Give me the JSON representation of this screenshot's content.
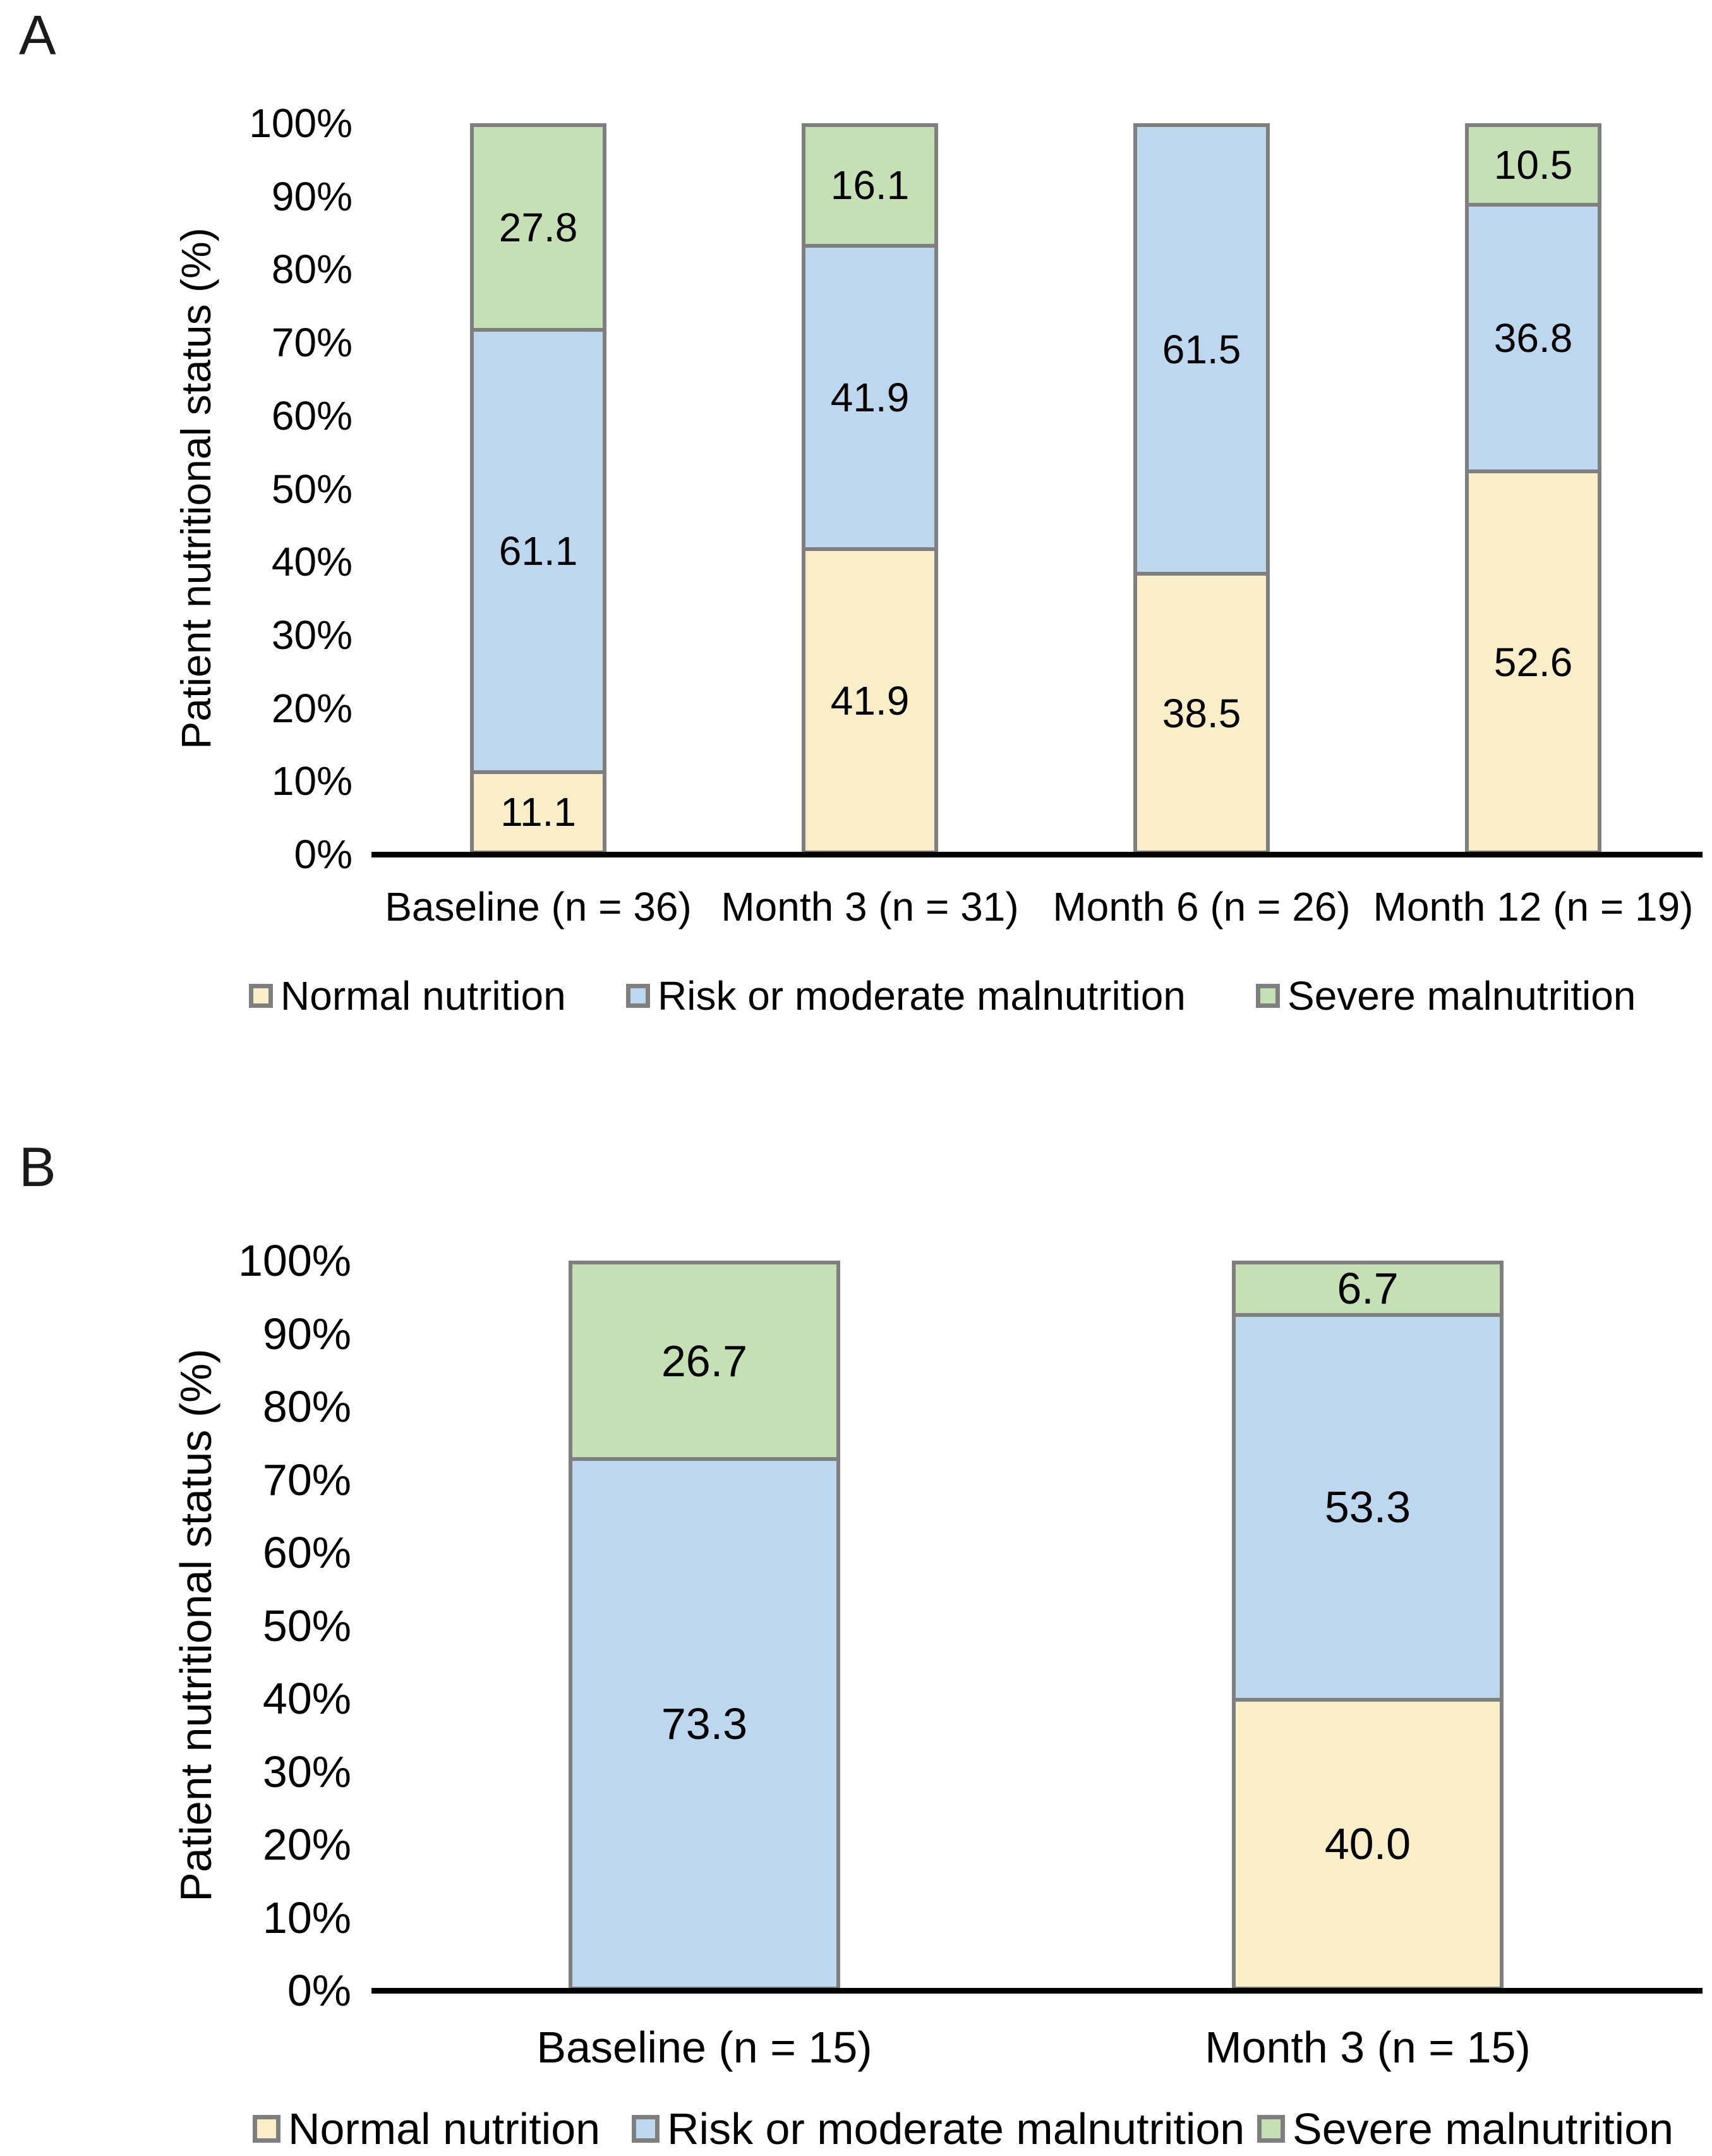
{
  "figure_background": "#ffffff",
  "colors": {
    "normal_nutrition": "#FAEEC8",
    "risk_or_moderate_malnutrition": "#BDD7EE",
    "severe_malnutrition": "#C5E0B4",
    "segment_border": "#7f7f7f",
    "axis_line": "#000000",
    "text": "#000000"
  },
  "chart_data": [
    {
      "type": "bar",
      "stacked": true,
      "percent_stacked": true,
      "panel_label": "A",
      "title": "",
      "xlabel": "",
      "ylabel": "Patient nutritional status (%)",
      "ylim": [
        0,
        100
      ],
      "grid": false,
      "legend_position": "bottom",
      "y_tick_labels": [
        "0%",
        "10%",
        "20%",
        "30%",
        "40%",
        "50%",
        "60%",
        "70%",
        "80%",
        "90%",
        "100%"
      ],
      "categories": [
        "Baseline (n = 36)",
        "Month 3 (n = 31)",
        "Month 6 (n = 26)",
        "Month 12 (n = 19)"
      ],
      "series": [
        {
          "name": "Normal nutrition",
          "color": "#FAEEC8",
          "values": [
            11.1,
            41.9,
            38.5,
            52.6
          ]
        },
        {
          "name": "Risk or moderate malnutrition",
          "color": "#BDD7EE",
          "values": [
            61.1,
            41.9,
            61.5,
            36.8
          ]
        },
        {
          "name": "Severe malnutrition",
          "color": "#C5E0B4",
          "values": [
            27.8,
            16.1,
            0,
            10.5
          ]
        }
      ]
    },
    {
      "type": "bar",
      "stacked": true,
      "percent_stacked": true,
      "panel_label": "B",
      "title": "",
      "xlabel": "",
      "ylabel": "Patient nutritional status (%)",
      "ylim": [
        0,
        100
      ],
      "grid": false,
      "legend_position": "bottom",
      "y_tick_labels": [
        "0%",
        "10%",
        "20%",
        "30%",
        "40%",
        "50%",
        "60%",
        "70%",
        "80%",
        "90%",
        "100%"
      ],
      "categories": [
        "Baseline (n = 15)",
        "Month 3 (n = 15)"
      ],
      "series": [
        {
          "name": "Normal nutrition",
          "color": "#FAEEC8",
          "values": [
            0,
            40.0
          ]
        },
        {
          "name": "Risk or moderate malnutrition",
          "color": "#BDD7EE",
          "values": [
            73.3,
            53.3
          ]
        },
        {
          "name": "Severe malnutrition",
          "color": "#C5E0B4",
          "values": [
            26.7,
            6.7
          ]
        }
      ]
    }
  ]
}
